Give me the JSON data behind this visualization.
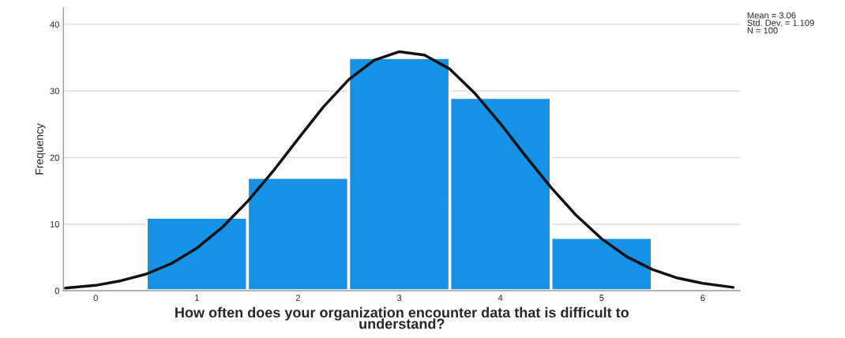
{
  "chart_data": {
    "type": "histogram",
    "xlabel": "How often does your organization encounter data that is difficult to\nunderstand?",
    "ylabel": "Frequency",
    "bins": [
      0.5,
      1.5,
      2.5,
      3.5,
      4.5,
      5.5
    ],
    "values": [
      11,
      17,
      35,
      29,
      8
    ],
    "color": "#1591e6",
    "xlim": [
      -0.32,
      6.37
    ],
    "ylim": [
      0,
      42.5
    ],
    "xticks": [
      0,
      1,
      2,
      3,
      4,
      5,
      6
    ],
    "yticks": [
      0,
      10,
      20,
      30,
      40
    ],
    "grid": "y",
    "annotations": [
      "Mean = 3.06",
      "Std. Dev. = 1.109",
      "N = 100"
    ],
    "series": [
      {
        "type": "line",
        "color": "#111111",
        "marker": "none",
        "line_style": "solid",
        "x": [
          -0.3,
          0,
          0.25,
          0.5,
          0.75,
          1,
          1.25,
          1.5,
          1.75,
          2,
          2.25,
          2.5,
          2.75,
          3,
          3.25,
          3.5,
          3.75,
          4,
          4.25,
          4.5,
          4.75,
          5,
          5.25,
          5.5,
          5.75,
          6,
          6.3
        ],
        "values": [
          0.4,
          0.8,
          1.5,
          2.5,
          4.1,
          6.4,
          9.5,
          13.4,
          17.9,
          22.8,
          27.6,
          31.7,
          34.6,
          35.9,
          35.4,
          33.3,
          29.6,
          25.1,
          20.2,
          15.5,
          11.3,
          7.8,
          5.1,
          3.2,
          1.9,
          1.1,
          0.5
        ]
      }
    ]
  }
}
